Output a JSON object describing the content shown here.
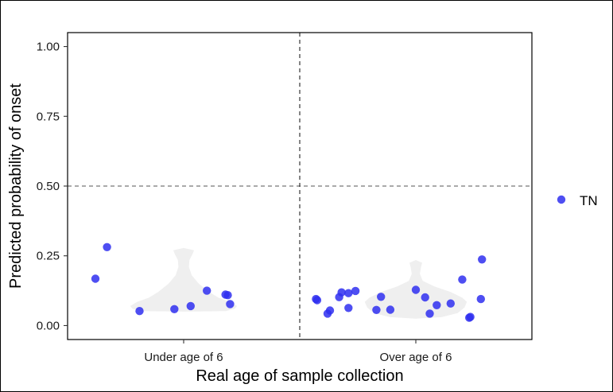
{
  "chart_data": {
    "type": "scatter",
    "xlabel": "Real age of sample collection",
    "ylabel": "Predicted probability of onset",
    "categories": [
      "Under age of 6",
      "Over age of 6"
    ],
    "ylim": [
      -0.05,
      1.05
    ],
    "yticks": [
      {
        "value": 0.0,
        "label": "0.00"
      },
      {
        "value": 0.25,
        "label": "0.25"
      },
      {
        "value": 0.5,
        "label": "0.50"
      },
      {
        "value": 0.75,
        "label": "0.75"
      },
      {
        "value": 1.0,
        "label": "1.00"
      }
    ],
    "threshold": 0.5,
    "category_divider": true,
    "grid": false,
    "legend_position": "right",
    "colors": {
      "point": "#2f2ff0",
      "violin": "#efefef",
      "reference_line": "#555555"
    },
    "series": [
      {
        "name": "TN",
        "points": [
          {
            "category": "Under age of 6",
            "offset": -0.38,
            "y": 0.168
          },
          {
            "category": "Under age of 6",
            "offset": -0.33,
            "y": 0.281
          },
          {
            "category": "Under age of 6",
            "offset": -0.19,
            "y": 0.052
          },
          {
            "category": "Under age of 6",
            "offset": -0.04,
            "y": 0.059
          },
          {
            "category": "Under age of 6",
            "offset": 0.03,
            "y": 0.07
          },
          {
            "category": "Under age of 6",
            "offset": 0.1,
            "y": 0.125
          },
          {
            "category": "Under age of 6",
            "offset": 0.18,
            "y": 0.111
          },
          {
            "category": "Under age of 6",
            "offset": 0.19,
            "y": 0.109
          },
          {
            "category": "Under age of 6",
            "offset": 0.2,
            "y": 0.077
          },
          {
            "category": "Over age of 6",
            "offset": -0.43,
            "y": 0.095
          },
          {
            "category": "Over age of 6",
            "offset": -0.425,
            "y": 0.091
          },
          {
            "category": "Over age of 6",
            "offset": -0.38,
            "y": 0.043
          },
          {
            "category": "Over age of 6",
            "offset": -0.37,
            "y": 0.054
          },
          {
            "category": "Over age of 6",
            "offset": -0.33,
            "y": 0.102
          },
          {
            "category": "Over age of 6",
            "offset": -0.32,
            "y": 0.119
          },
          {
            "category": "Over age of 6",
            "offset": -0.29,
            "y": 0.063
          },
          {
            "category": "Over age of 6",
            "offset": -0.29,
            "y": 0.116
          },
          {
            "category": "Over age of 6",
            "offset": -0.26,
            "y": 0.124
          },
          {
            "category": "Over age of 6",
            "offset": -0.17,
            "y": 0.056
          },
          {
            "category": "Over age of 6",
            "offset": -0.15,
            "y": 0.103
          },
          {
            "category": "Over age of 6",
            "offset": -0.11,
            "y": 0.057
          },
          {
            "category": "Over age of 6",
            "offset": 0.0,
            "y": 0.128
          },
          {
            "category": "Over age of 6",
            "offset": 0.04,
            "y": 0.101
          },
          {
            "category": "Over age of 6",
            "offset": 0.06,
            "y": 0.043
          },
          {
            "category": "Over age of 6",
            "offset": 0.09,
            "y": 0.073
          },
          {
            "category": "Over age of 6",
            "offset": 0.15,
            "y": 0.079
          },
          {
            "category": "Over age of 6",
            "offset": 0.2,
            "y": 0.165
          },
          {
            "category": "Over age of 6",
            "offset": 0.23,
            "y": 0.028
          },
          {
            "category": "Over age of 6",
            "offset": 0.235,
            "y": 0.031
          },
          {
            "category": "Over age of 6",
            "offset": 0.28,
            "y": 0.095
          },
          {
            "category": "Over age of 6",
            "offset": 0.285,
            "y": 0.237
          }
        ]
      }
    ],
    "violins": [
      {
        "category": "Under age of 6",
        "y_min": 0.05,
        "y_max": 0.278
      },
      {
        "category": "Over age of 6",
        "y_min": 0.025,
        "y_max": 0.235
      }
    ]
  }
}
